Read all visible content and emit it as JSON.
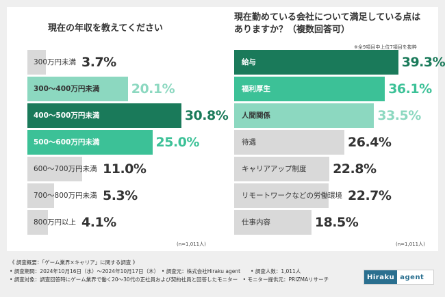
{
  "colors": {
    "dark": "#1a7a5a",
    "mid": "#3cc197",
    "light": "#8cd8c0",
    "gray": "#d9d9d9"
  },
  "chart_data": [
    {
      "type": "bar",
      "orientation": "horizontal",
      "title": "現在の年収を教えてください",
      "note": "(n=1,011人)",
      "categories": [
        "300万円未満",
        "300〜400万円未満",
        "400〜500万円未満",
        "500〜600万円未満",
        "600〜700万円未満",
        "700〜800万円未満",
        "800万円以上"
      ],
      "values": [
        3.7,
        20.1,
        30.8,
        25.0,
        11.0,
        5.3,
        4.1
      ],
      "value_labels": [
        "3.7%",
        "20.1%",
        "30.8%",
        "25.0%",
        "11.0%",
        "5.3%",
        "4.1%"
      ],
      "colors": [
        "gray",
        "light",
        "dark",
        "mid",
        "gray",
        "gray",
        "gray"
      ]
    },
    {
      "type": "bar",
      "orientation": "horizontal",
      "title": "現在勤めている会社について満足している点は\nありますか？（複数回答可）",
      "subnote": "※全9項目中上位7項目を抜粋",
      "note": "(n=1,011人)",
      "categories": [
        "給与",
        "福利厚生",
        "人間関係",
        "待遇",
        "キャリアアップ制度",
        "リモートワークなどの労働環境",
        "仕事内容"
      ],
      "values": [
        39.3,
        36.1,
        33.5,
        26.4,
        22.8,
        22.7,
        18.5
      ],
      "value_labels": [
        "39.3%",
        "36.1%",
        "33.5%",
        "26.4%",
        "22.8%",
        "22.7%",
        "18.5%"
      ],
      "colors": [
        "dark",
        "mid",
        "light",
        "gray",
        "gray",
        "gray",
        "gray"
      ]
    }
  ],
  "footer": [
    "《 調査概要：「ゲーム業界×キャリア」に関する調査 》",
    "• 調査期間：2024年10月16日（水）〜2024年10月17日（木）　• 調査元：株式会社Hiraku agent　　• 調査人数：1,011人",
    "• 調査対象：調査回答時にゲーム業界で働く20〜30代の正社員および契約社員と回答したモニター　• モニター提供元：PRIZMAリサーチ"
  ],
  "logo": {
    "part1": "Hiraku",
    "part2": "agent"
  }
}
